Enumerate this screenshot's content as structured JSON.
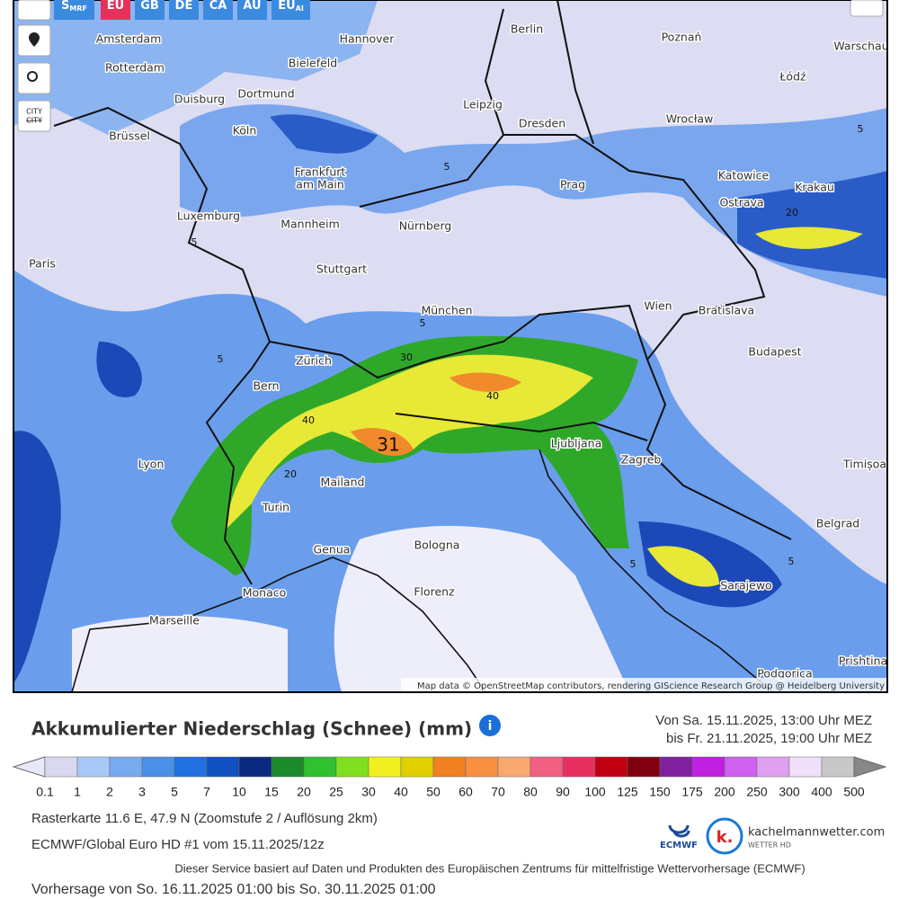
{
  "toolbar": {
    "buttons": [
      {
        "main": "S",
        "sub": "MRF"
      },
      {
        "main": "EU"
      },
      {
        "main": "GB"
      },
      {
        "main": "DE"
      },
      {
        "main": "CA"
      },
      {
        "main": "AU"
      },
      {
        "main": "EU",
        "sub": "AI"
      }
    ],
    "city_toggle": [
      "CITY",
      "CITY"
    ]
  },
  "map": {
    "cities": [
      "Amsterdam",
      "Hannover",
      "Berlin",
      "Poznań",
      "Warschau",
      "Rotterdam",
      "Bielefeld",
      "Łódź",
      "Duisburg",
      "Dortmund",
      "Leipzig",
      "Wrocław",
      "Köln",
      "Dresden",
      "Brüssel",
      "Frankfurt",
      "am Main",
      "Katowice",
      "Krakau",
      "Prag",
      "Ostrava",
      "Luxemburg",
      "Mannheim",
      "Nürnberg",
      "Paris",
      "Stuttgart",
      "München",
      "Wien",
      "Bratislava",
      "Budapest",
      "Zürich",
      "Bern",
      "Ljubljana",
      "Zagreb",
      "Lyon",
      "Timișoa",
      "Mailand",
      "Turin",
      "Belgrad",
      "Genua",
      "Bologna",
      "Sarajewo",
      "Monaco",
      "Florenz",
      "Marseille",
      "Podgorica",
      "Prishtina"
    ],
    "contour_labels": [
      "5",
      "5",
      "5",
      "5",
      "5",
      "5",
      "20",
      "30",
      "40",
      "40",
      "20",
      "31",
      "5"
    ],
    "attribution": "Map data © OpenStreetMap contributors, rendering GIScience Research Group @ Heidelberg University"
  },
  "legend": {
    "title": "Akkumulierter Niederschlag (Schnee) (mm)",
    "period": [
      "Von Sa. 15.11.2025, 13:00 Uhr MEZ",
      "bis Fr. 21.11.2025, 19:00 Uhr MEZ"
    ],
    "labels": [
      "0.1",
      "1",
      "2",
      "3",
      "5",
      "7",
      "10",
      "15",
      "20",
      "25",
      "30",
      "40",
      "50",
      "60",
      "70",
      "80",
      "90",
      "100",
      "125",
      "150",
      "175",
      "200",
      "250",
      "300",
      "400",
      "500"
    ],
    "colors": [
      "#d8d8f0",
      "#a8c8f8",
      "#78aaf0",
      "#4a90e8",
      "#2070e0",
      "#1050c0",
      "#0a2a80",
      "#1a8a2a",
      "#30c030",
      "#80e020",
      "#f0f020",
      "#e0d000",
      "#f08020",
      "#f89040",
      "#f8a870",
      "#f06080",
      "#e83060",
      "#c00010",
      "#800010",
      "#8020a0",
      "#c020e0",
      "#d060f0",
      "#e0a0f0",
      "#f0e0f8",
      "#c8c8c8"
    ],
    "under_color": "#e8e8f8",
    "over_color": "#888888"
  },
  "info": {
    "raster": "Rasterkarte 11.6 E, 47.9 N (Zoomstufe 2 / Auflösung 2km)",
    "model": "ECMWF/Global Euro HD #1 vom 15.11.2025/12z",
    "service": "Dieser Service basiert auf Daten und Produkten des Europäischen Zentrums für mittelfristige Wettervorhersage (ECMWF)",
    "forecast": "Vorhersage von So. 16.11.2025 01:00 bis So. 30.11.2025 01:00"
  },
  "logos": {
    "ecmwf": "ECMWF",
    "kachelmann": "kachelmannwetter.com",
    "kachelmann_sub": "WETTER HD",
    "k": "k."
  }
}
